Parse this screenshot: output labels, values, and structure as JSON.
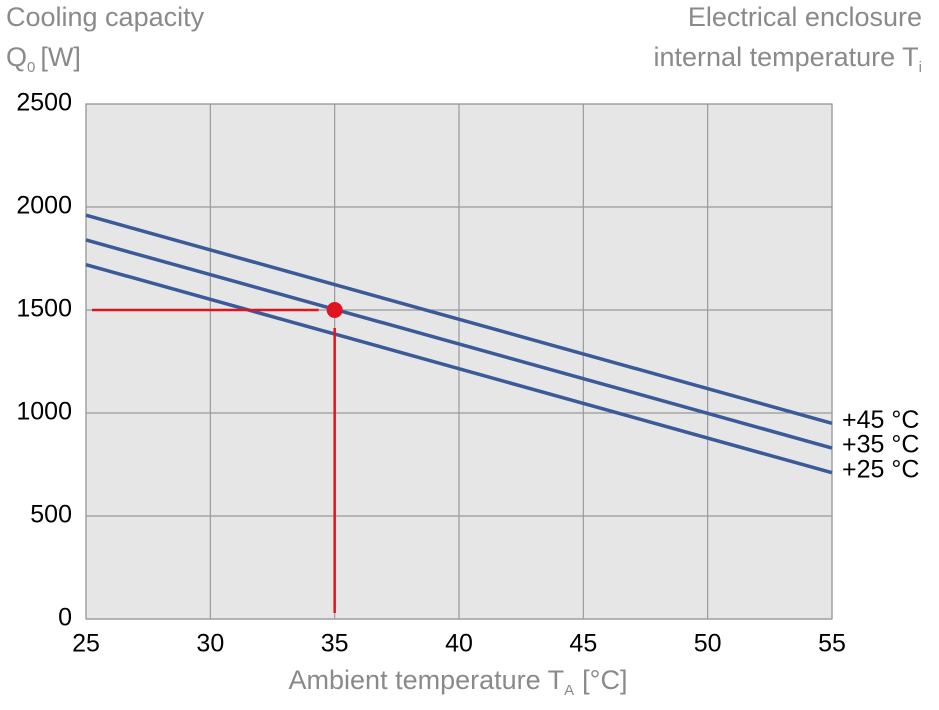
{
  "chart_data": {
    "type": "line",
    "y_label": {
      "text": "Cooling capacity",
      "symbol": "Q",
      "subscript": "0",
      "unit": "[W]"
    },
    "right_label": {
      "text": "Electrical enclosure",
      "line2": "internal temperature T",
      "subscript": "i"
    },
    "x_label": {
      "text": "Ambient temperature T",
      "subscript": "A",
      "unit": "[°C]"
    },
    "x": [
      25,
      55
    ],
    "series": [
      {
        "name": "+45 °C",
        "color": "#3a5a9a",
        "values": [
          1960,
          950
        ]
      },
      {
        "name": "+35 °C",
        "color": "#3a5a9a",
        "values": [
          1840,
          830
        ]
      },
      {
        "name": "+25 °C",
        "color": "#3a5a9a",
        "values": [
          1720,
          710
        ]
      }
    ],
    "point": {
      "x": 35,
      "y": 1500,
      "color": "#e0141e"
    },
    "xlim": [
      25,
      55
    ],
    "xticks": [
      25,
      30,
      35,
      40,
      45,
      50,
      55
    ],
    "ylim": [
      0,
      2500
    ],
    "yticks": [
      0,
      500,
      1000,
      1500,
      2000,
      2500
    ],
    "grid": true
  }
}
